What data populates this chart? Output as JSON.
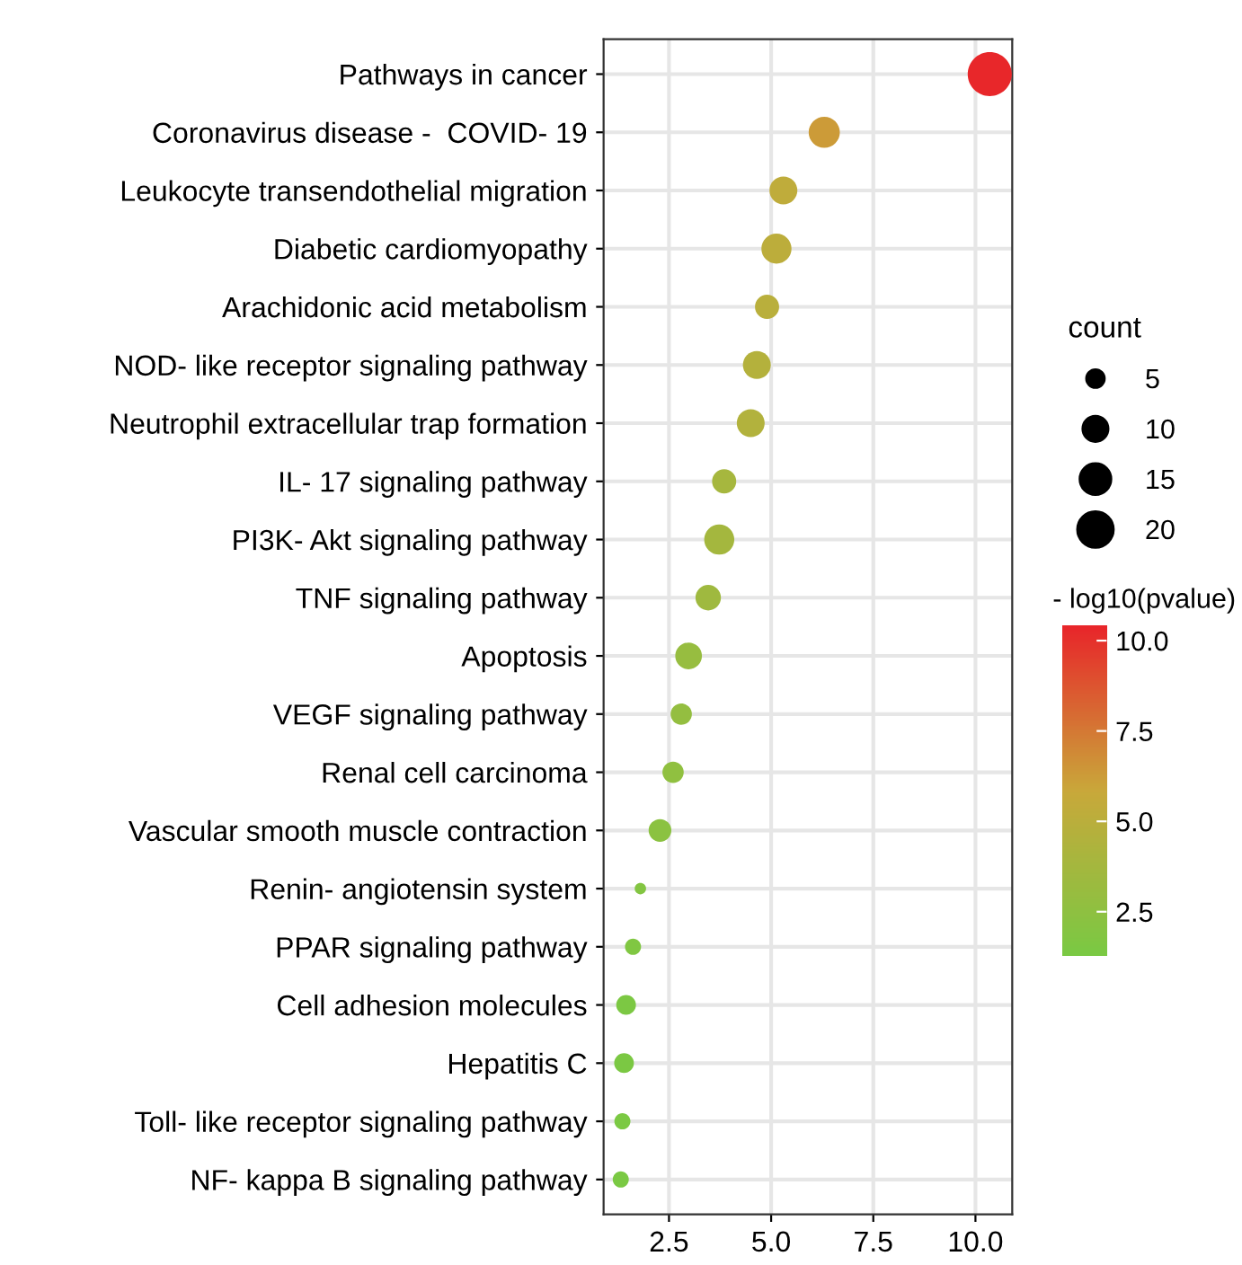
{
  "chart_data": {
    "type": "bubble",
    "categories": [
      "Pathways in cancer",
      "Coronavirus disease -  COVID- 19",
      "Leukocyte transendothelial migration",
      "Diabetic cardiomyopathy",
      "Arachidonic acid metabolism",
      "NOD- like receptor signaling pathway",
      "Neutrophil extracellular trap formation",
      "IL- 17 signaling pathway",
      "PI3K- Akt signaling pathway",
      "TNF signaling pathway",
      "Apoptosis",
      "VEGF signaling pathway",
      "Renal cell carcinoma",
      "Vascular smooth muscle contraction",
      "Renin- angiotensin system",
      "PPAR signaling pathway",
      "Cell adhesion molecules",
      "Hepatitis C",
      "Toll- like receptor signaling pathway",
      "NF- kappa B signaling pathway"
    ],
    "orientation": "horizontal",
    "values": [
      10.35,
      6.3,
      5.3,
      5.13,
      4.9,
      4.65,
      4.5,
      3.85,
      3.73,
      3.46,
      2.98,
      2.8,
      2.6,
      2.28,
      1.8,
      1.62,
      1.45,
      1.4,
      1.36,
      1.32
    ],
    "cvalues": [
      10.35,
      6.3,
      5.3,
      5.13,
      4.9,
      4.65,
      4.5,
      3.85,
      3.73,
      3.46,
      2.98,
      2.8,
      2.6,
      2.28,
      1.8,
      1.62,
      1.45,
      1.4,
      1.36,
      1.32
    ],
    "sizes": [
      30,
      15,
      12,
      14,
      9,
      12,
      12,
      9,
      14,
      10,
      11,
      7,
      7,
      8,
      2,
      4,
      6,
      6,
      4,
      4
    ],
    "size_legend": [
      5,
      10,
      15,
      20
    ],
    "legend_title": "count",
    "clabel": "- log10(pvalue)",
    "clim": [
      1.3,
      10.4
    ],
    "cticks": [
      {
        "value": 2.5,
        "label": "2.5"
      },
      {
        "value": 5.0,
        "label": "5.0"
      },
      {
        "value": 7.5,
        "label": "7.5"
      },
      {
        "value": 10.0,
        "label": "10.0"
      }
    ],
    "xlim": [
      0.9,
      10.9
    ],
    "xticks": [
      {
        "value": 2.5,
        "label": "2.5"
      },
      {
        "value": 5.0,
        "label": "5.0"
      },
      {
        "value": 7.5,
        "label": "7.5"
      },
      {
        "value": 10.0,
        "label": "10.0"
      }
    ],
    "grid": true,
    "marker": "circle"
  }
}
